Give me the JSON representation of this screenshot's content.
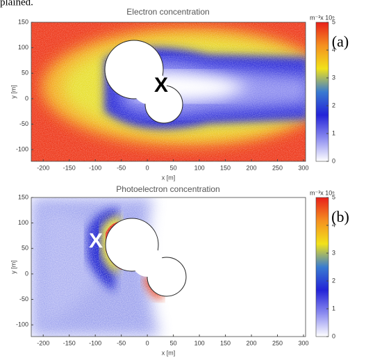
{
  "caption_fragment": "plained.",
  "chart_data": [
    {
      "type": "heatmap",
      "title": "Electron concentration",
      "x_label": "x [m]",
      "y_label": "y [m]",
      "xlim": [
        -223,
        304
      ],
      "ylim": [
        -123,
        150
      ],
      "xticks": [
        -200,
        -150,
        -100,
        -50,
        0,
        50,
        100,
        150,
        200,
        250,
        300
      ],
      "yticks": [
        -100,
        -50,
        0,
        50,
        100,
        150
      ],
      "colorbar": {
        "label": "m⁻³x 10⁶",
        "lim": [
          0,
          5
        ],
        "ticks": [
          0,
          1,
          2,
          3,
          4,
          5
        ],
        "colormap": [
          "#ffffff",
          "#8c8cf0",
          "#2323d8",
          "#3a7bd0",
          "#f2e21a",
          "#f59020",
          "#e8201a"
        ]
      },
      "panel_label": "(a)",
      "marker": "X",
      "marker_color": "#000000"
    },
    {
      "type": "heatmap",
      "title": "Photoelectron concentration",
      "x_label": "x [m]",
      "y_label": "y [m]",
      "xlim": [
        -223,
        304
      ],
      "ylim": [
        -123,
        150
      ],
      "xticks": [
        -200,
        -150,
        -100,
        -50,
        0,
        50,
        100,
        150,
        200,
        250,
        300
      ],
      "yticks": [
        -100,
        -50,
        0,
        50,
        100,
        150
      ],
      "colorbar": {
        "label": "m⁻³x 10⁶",
        "lim": [
          0,
          5
        ],
        "ticks": [
          0,
          1,
          2,
          3,
          4,
          5
        ],
        "colormap": [
          "#ffffff",
          "#8c8cf0",
          "#2323d8",
          "#3a7bd0",
          "#f2e21a",
          "#f59020",
          "#e8201a"
        ]
      },
      "panel_label": "(b)",
      "marker": "X",
      "marker_color": "#ffffff"
    }
  ]
}
